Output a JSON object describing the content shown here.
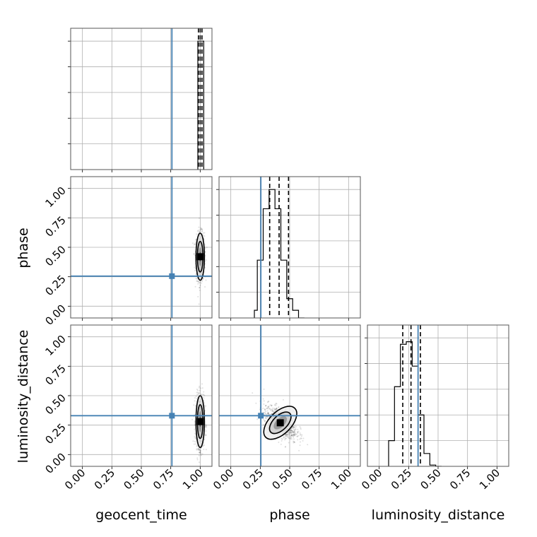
{
  "chart_data": {
    "type": "corner",
    "parameters": [
      {
        "name": "geocent_time",
        "label": "geocent_time"
      },
      {
        "name": "phase",
        "label": "phase"
      },
      {
        "name": "luminosity_distance",
        "label": "luminosity_distance"
      }
    ],
    "tick_labels": [
      "0.00",
      "0.25",
      "0.50",
      "0.75",
      "1.00"
    ],
    "axis_range": [
      -0.1,
      1.1
    ],
    "grid": true,
    "truths": {
      "geocent_time": 0.76,
      "phase": 0.255,
      "luminosity_distance": 0.33
    },
    "truth_color": "#4682b4",
    "histograms": {
      "geocent_time": {
        "bin_edges": [
          0.98,
          1.005,
          1.03
        ],
        "counts": [
          1.0,
          1.0
        ],
        "quantiles": [
          0.985,
          1.0,
          1.015
        ],
        "ylim": [
          0,
          1.1
        ]
      },
      "phase": {
        "bin_edges": [
          0.2,
          0.225,
          0.25,
          0.275,
          0.3,
          0.325,
          0.35,
          0.375,
          0.4,
          0.425,
          0.45,
          0.475,
          0.5,
          0.525,
          0.55,
          0.575,
          0.6,
          0.625
        ],
        "counts": [
          0.06,
          0.45,
          0.45,
          0.85,
          0.85,
          1.0,
          1.0,
          0.85,
          0.85,
          0.45,
          0.45,
          0.15,
          0.15,
          0.06,
          0.06,
          0.0,
          0.0
        ],
        "quantiles": [
          0.33,
          0.41,
          0.49
        ],
        "ylim": [
          0,
          1.1
        ]
      },
      "luminosity_distance": {
        "bin_edges": [
          0.08,
          0.13,
          0.18,
          0.23,
          0.28,
          0.33,
          0.38,
          0.43,
          0.48,
          0.53
        ],
        "counts": [
          0.2,
          0.62,
          0.95,
          0.97,
          0.78,
          0.4,
          0.1,
          0.01,
          0.0
        ],
        "quantiles": [
          0.2,
          0.27,
          0.35
        ],
        "ylim": [
          0,
          1.1
        ]
      }
    },
    "joint": [
      {
        "x": "geocent_time",
        "y": "phase",
        "center": [
          1.0,
          0.42
        ],
        "spread": [
          0.018,
          0.1
        ],
        "rho": 0.0
      },
      {
        "x": "geocent_time",
        "y": "luminosity_distance",
        "center": [
          1.0,
          0.28
        ],
        "spread": [
          0.018,
          0.11
        ],
        "rho": 0.0
      },
      {
        "x": "phase",
        "y": "luminosity_distance",
        "center": [
          0.42,
          0.27
        ],
        "spread": [
          0.07,
          0.07
        ],
        "rho": -0.55
      }
    ]
  }
}
